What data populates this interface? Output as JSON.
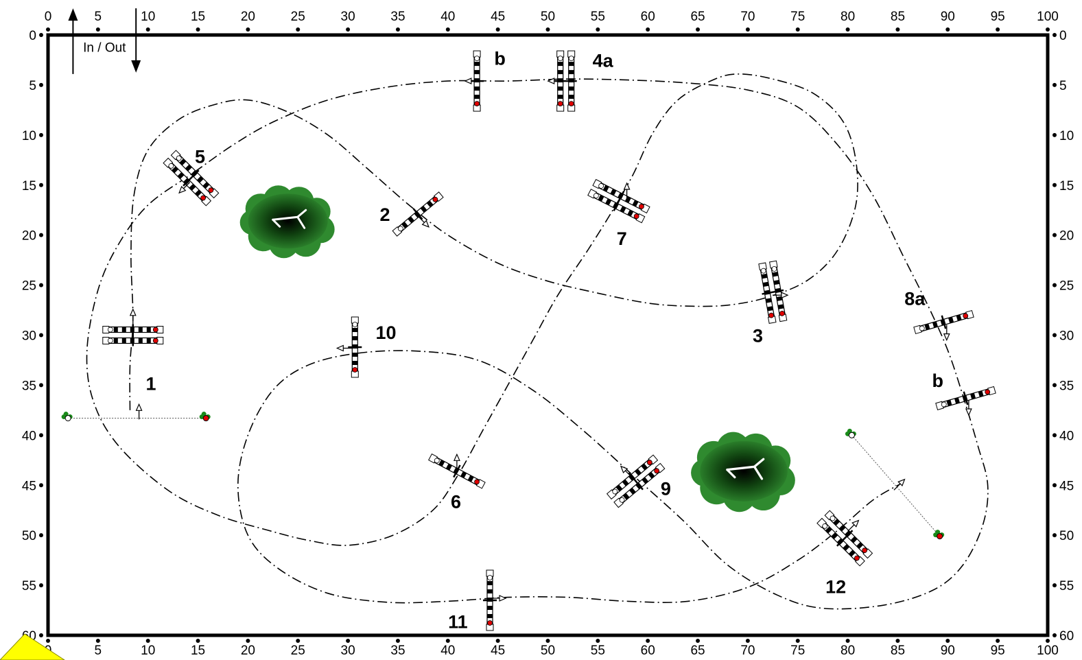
{
  "arena": {
    "x_range": [
      0,
      100
    ],
    "y_range": [
      0,
      60
    ],
    "x_ticks": [
      0,
      5,
      10,
      15,
      20,
      25,
      30,
      35,
      40,
      45,
      50,
      55,
      60,
      65,
      70,
      75,
      80,
      85,
      90,
      95,
      100
    ],
    "y_ticks": [
      0,
      5,
      10,
      15,
      20,
      25,
      30,
      35,
      40,
      45,
      50,
      55,
      60
    ]
  },
  "in_out": {
    "label": "In / Out",
    "x1": 2.5,
    "x2": 8.8,
    "y_top": -2.8,
    "y_bottom": 2.8
  },
  "fences": [
    {
      "id": "1",
      "label": "1",
      "x": 8.5,
      "y": 30.0,
      "angle": 0,
      "rails": 2,
      "lx": 10.3,
      "ly": 34.8
    },
    {
      "id": "2",
      "label": "2",
      "x": 37.0,
      "y": 17.9,
      "angle": -40,
      "rails": 1,
      "lx": 33.7,
      "ly": 17.9
    },
    {
      "id": "3",
      "label": "3",
      "x": 72.5,
      "y": 25.7,
      "angle": 80,
      "rails": 2,
      "lx": 71.0,
      "ly": 30.0
    },
    {
      "id": "4a",
      "label": "4a",
      "x": 51.8,
      "y": 4.6,
      "angle": 90,
      "rails": 2,
      "lx": 55.5,
      "ly": 2.5
    },
    {
      "id": "4b",
      "label": "b",
      "x": 42.9,
      "y": 4.6,
      "angle": 90,
      "rails": 1,
      "lx": 45.2,
      "ly": 2.3
    },
    {
      "id": "5",
      "label": "5",
      "x": 14.3,
      "y": 14.3,
      "angle": 45,
      "rails": 2,
      "lx": 15.2,
      "ly": 12.1
    },
    {
      "id": "6",
      "label": "6",
      "x": 40.9,
      "y": 43.6,
      "angle": 28,
      "rails": 1,
      "lx": 40.8,
      "ly": 46.6
    },
    {
      "id": "7",
      "label": "7",
      "x": 57.1,
      "y": 16.6,
      "angle": 27,
      "rails": 2,
      "lx": 57.4,
      "ly": 20.3
    },
    {
      "id": "8a",
      "label": "8a",
      "x": 89.6,
      "y": 28.7,
      "angle": -16,
      "rails": 1,
      "lx": 86.7,
      "ly": 26.3
    },
    {
      "id": "8b",
      "label": "b",
      "x": 91.8,
      "y": 36.3,
      "angle": -16,
      "rails": 1,
      "lx": 89.0,
      "ly": 34.5
    },
    {
      "id": "9",
      "label": "9",
      "x": 58.8,
      "y": 44.6,
      "angle": -40,
      "rails": 2,
      "lx": 61.8,
      "ly": 45.3
    },
    {
      "id": "10",
      "label": "10",
      "x": 30.7,
      "y": 31.2,
      "angle": 90,
      "rails": 1,
      "lx": 33.8,
      "ly": 29.7
    },
    {
      "id": "11",
      "label": "11",
      "x": 44.2,
      "y": 56.5,
      "angle": 90,
      "rails": 1,
      "lx": 41.0,
      "ly": 58.6
    },
    {
      "id": "12",
      "label": "12",
      "x": 79.7,
      "y": 50.3,
      "angle": 45,
      "rails": 2,
      "lx": 78.8,
      "ly": 55.1
    }
  ],
  "arrows": [
    {
      "x": 8.5,
      "y": 28.1,
      "dir": "up"
    },
    {
      "x": 37.6,
      "y": 18.7,
      "dir": "down-right"
    },
    {
      "x": 73.3,
      "y": 26.0,
      "dir": "right"
    },
    {
      "x": 50.7,
      "y": 4.6,
      "dir": "left"
    },
    {
      "x": 42.4,
      "y": 4.6,
      "dir": "left"
    },
    {
      "x": 13.6,
      "y": 15.3,
      "dir": "down-left"
    },
    {
      "x": 40.9,
      "y": 42.6,
      "dir": "up"
    },
    {
      "x": 57.9,
      "y": 15.5,
      "dir": "up"
    },
    {
      "x": 89.9,
      "y": 29.8,
      "dir": "down"
    },
    {
      "x": 92.1,
      "y": 37.3,
      "dir": "down"
    },
    {
      "x": 57.8,
      "y": 43.6,
      "dir": "up-left"
    },
    {
      "x": 29.6,
      "y": 31.3,
      "dir": "left"
    },
    {
      "x": 45.1,
      "y": 56.3,
      "dir": "right"
    },
    {
      "x": 80.6,
      "y": 49.0,
      "dir": "up-right"
    },
    {
      "x": 85.2,
      "y": 44.9,
      "dir": "up-right"
    },
    {
      "x": 9.1,
      "y": 37.6,
      "dir": "up"
    }
  ],
  "start_line": {
    "x1": 2.0,
    "y1": 38.3,
    "x2": 15.8,
    "y2": 38.3
  },
  "finish_line": {
    "x1": 80.4,
    "y1": 40.0,
    "x2": 89.2,
    "y2": 50.1
  },
  "trees": [
    {
      "x": 24.0,
      "y": 18.6,
      "size": 1.0
    },
    {
      "x": 69.6,
      "y": 43.6,
      "size": 1.1
    }
  ],
  "route_main": [
    [
      8.2,
      37.5
    ],
    [
      8.2,
      33.0
    ],
    [
      8.5,
      28.4
    ],
    [
      8.3,
      22.0
    ],
    [
      8.6,
      16.0
    ],
    [
      10.0,
      11.5
    ],
    [
      13.0,
      8.5
    ],
    [
      16.5,
      7.0
    ],
    [
      20.0,
      6.5
    ],
    [
      24.0,
      7.7
    ],
    [
      28.0,
      10.0
    ],
    [
      32.0,
      13.4
    ],
    [
      36.0,
      16.9
    ],
    [
      40.0,
      20.0
    ],
    [
      45.0,
      22.8
    ],
    [
      50.0,
      24.6
    ],
    [
      55.0,
      25.8
    ],
    [
      60.0,
      26.8
    ],
    [
      64.0,
      27.1
    ],
    [
      68.0,
      27.0
    ],
    [
      72.0,
      26.2
    ],
    [
      76.0,
      24.5
    ],
    [
      79.0,
      21.5
    ],
    [
      80.8,
      17.0
    ],
    [
      80.8,
      12.5
    ],
    [
      79.5,
      8.6
    ],
    [
      76.5,
      5.8
    ],
    [
      72.5,
      4.4
    ],
    [
      69.0,
      3.9
    ],
    [
      66.5,
      4.5
    ],
    [
      63.0,
      6.5
    ],
    [
      60.5,
      9.8
    ],
    [
      58.5,
      14.0
    ],
    [
      56.5,
      17.5
    ],
    [
      54.0,
      21.5
    ],
    [
      51.0,
      26.0
    ],
    [
      48.5,
      30.5
    ],
    [
      46.0,
      35.0
    ],
    [
      43.5,
      39.5
    ],
    [
      41.0,
      44.0
    ],
    [
      38.5,
      47.5
    ],
    [
      34.5,
      50.0
    ],
    [
      30.0,
      51.0
    ],
    [
      26.0,
      50.5
    ],
    [
      22.0,
      49.5
    ],
    [
      17.0,
      48.0
    ],
    [
      12.0,
      45.5
    ],
    [
      7.0,
      41.0
    ],
    [
      4.5,
      36.5
    ],
    [
      3.9,
      31.5
    ],
    [
      5.0,
      25.5
    ],
    [
      7.0,
      21.0
    ],
    [
      10.0,
      17.0
    ],
    [
      14.5,
      13.8
    ],
    [
      18.5,
      11.0
    ],
    [
      22.5,
      8.7
    ],
    [
      28.0,
      6.5
    ],
    [
      34.0,
      5.2
    ],
    [
      40.0,
      4.6
    ],
    [
      46.0,
      4.6
    ],
    [
      52.0,
      4.4
    ],
    [
      58.0,
      4.5
    ],
    [
      64.0,
      4.8
    ],
    [
      70.0,
      5.5
    ],
    [
      75.0,
      7.2
    ],
    [
      79.0,
      11.0
    ],
    [
      82.5,
      16.0
    ],
    [
      85.5,
      22.0
    ],
    [
      88.0,
      27.0
    ],
    [
      90.0,
      31.5
    ],
    [
      91.5,
      36.0
    ],
    [
      93.0,
      41.0
    ],
    [
      94.0,
      45.0
    ],
    [
      93.5,
      49.0
    ],
    [
      91.5,
      53.0
    ],
    [
      88.5,
      55.5
    ],
    [
      83.5,
      57.0
    ],
    [
      77.5,
      57.3
    ],
    [
      73.0,
      56.0
    ],
    [
      68.0,
      53.0
    ],
    [
      63.5,
      48.5
    ],
    [
      58.5,
      44.0
    ],
    [
      53.5,
      39.5
    ],
    [
      48.5,
      35.5
    ],
    [
      43.0,
      32.5
    ],
    [
      37.0,
      31.6
    ],
    [
      31.0,
      31.8
    ],
    [
      26.0,
      33.0
    ],
    [
      22.5,
      35.5
    ],
    [
      20.0,
      40.0
    ],
    [
      19.0,
      45.0
    ],
    [
      20.0,
      50.0
    ],
    [
      23.0,
      53.3
    ],
    [
      28.0,
      55.8
    ],
    [
      34.0,
      56.7
    ],
    [
      40.0,
      56.6
    ],
    [
      46.0,
      56.2
    ],
    [
      52.0,
      56.2
    ],
    [
      58.0,
      56.6
    ],
    [
      64.0,
      56.6
    ],
    [
      70.0,
      55.2
    ],
    [
      75.0,
      52.5
    ],
    [
      79.0,
      49.5
    ],
    [
      82.5,
      46.5
    ],
    [
      85.2,
      44.9
    ]
  ]
}
